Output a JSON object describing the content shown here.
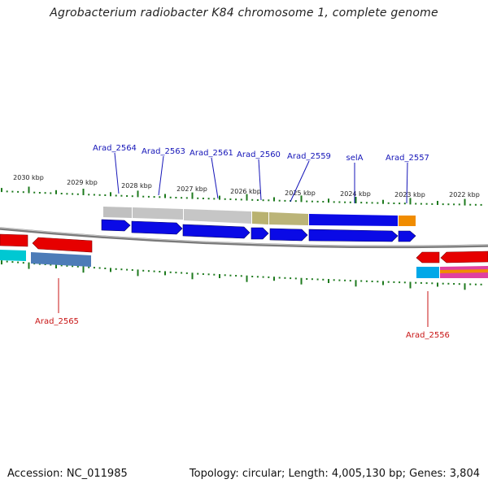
{
  "title": "Agrobacterium radiobacter K84 chromosome 1, complete genome",
  "footer": {
    "accession": "Accession: NC_011985",
    "summary": "Topology: circular; Length: 4,005,130 bp; Genes: 3,804"
  },
  "colors": {
    "backbone": "#8a8a8a",
    "tick": "#1e7a1e",
    "upper_label": "#1515b8",
    "lower_label": "#c81414"
  },
  "scale_labels": [
    "2030 kbp",
    "2029 kbp",
    "2028 kbp",
    "2027 kbp",
    "2026 kbp",
    "2025 kbp",
    "2024 kbp",
    "2023 kbp",
    "2022 kbp"
  ],
  "upper_genes": [
    "Arad_2564",
    "Arad_2563",
    "Arad_2561",
    "Arad_2560",
    "Arad_2559",
    "selA",
    "Arad_2557"
  ],
  "lower_genes": [
    "Arad_2565",
    "Arad_2556"
  ],
  "cog_bar_colors": [
    "#c0c0c0",
    "#c0c0c0",
    "#c0c0c0",
    "#b9b270",
    "#b9b270",
    "#0a0ae6",
    "#f08c00"
  ],
  "arrow_color_forward": "#0a0ae6",
  "arrow_color_reverse": "#e60000",
  "lower_cog_colors": [
    "#00c8d2",
    "#4d7cb8",
    "#00a8e8",
    "#e040a0"
  ]
}
